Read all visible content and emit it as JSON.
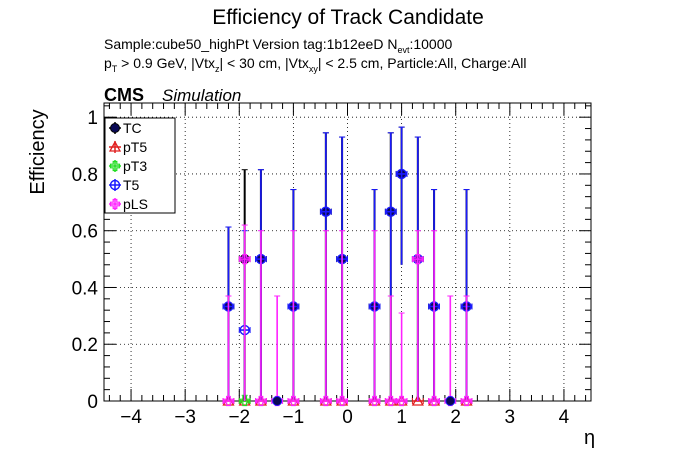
{
  "chart_data": {
    "type": "scatter",
    "title": "Efficiency of Track Candidate",
    "subtitle_sample": "Sample:cube50_highPt   Version tag:1b12eeD  N",
    "subtitle_sample_sub": "evt",
    "subtitle_sample_tail": ":10000",
    "cuts_line": {
      "p": "p",
      "p_sub": "T",
      "a": " > 0.9 GeV, |Vtx",
      "a_sub": "z",
      "b": "| < 30 cm, |Vtx",
      "b_sub": "xy",
      "c": "| < 2.5 cm, Particle:All, Charge:All"
    },
    "cms_label": "CMS",
    "simulation_label": "Simulation",
    "xlabel": "η",
    "ylabel": "Efficiency",
    "xlim": [
      -4.5,
      4.5
    ],
    "ylim": [
      0,
      1.05
    ],
    "x_ticks": [
      -4,
      -3,
      -2,
      -1,
      0,
      1,
      2,
      3,
      4
    ],
    "x_tick_labels": [
      "−4",
      "−3",
      "−2",
      "−1",
      "0",
      "1",
      "2",
      "3",
      "4"
    ],
    "y_ticks": [
      0,
      0.2,
      0.4,
      0.6,
      0.8,
      1
    ],
    "y_tick_labels": [
      "0",
      "0.2",
      "0.4",
      "0.6",
      "0.8",
      "1"
    ],
    "grid": true,
    "legend_position": "top-left",
    "bin_half_width": 0.1,
    "series": [
      {
        "name": "TC",
        "color": "#000000",
        "marker": "filled-circle",
        "points": [
          {
            "x": -2.2,
            "y": 0.333,
            "lo": 0.0,
            "hi": 0.613
          },
          {
            "x": -1.9,
            "y": 0.5,
            "lo": 0.0,
            "hi": 0.815
          },
          {
            "x": -1.6,
            "y": 0.5,
            "lo": 0.0,
            "hi": 0.815
          },
          {
            "x": -1.0,
            "y": 0.333,
            "lo": 0.0,
            "hi": 0.745
          },
          {
            "x": -0.4,
            "y": 0.667,
            "lo": 0.0,
            "hi": 0.945
          },
          {
            "x": -0.1,
            "y": 0.5,
            "lo": 0.0,
            "hi": 0.93
          },
          {
            "x": 0.5,
            "y": 0.333,
            "lo": 0.0,
            "hi": 0.745
          },
          {
            "x": 0.8,
            "y": 0.667,
            "lo": 0.0,
            "hi": 0.945
          },
          {
            "x": 1.0,
            "y": 0.8,
            "lo": 0.48,
            "hi": 0.965
          },
          {
            "x": 1.3,
            "y": 0.5,
            "lo": 0.0,
            "hi": 0.93
          },
          {
            "x": 1.6,
            "y": 0.333,
            "lo": 0.0,
            "hi": 0.745
          },
          {
            "x": 2.2,
            "y": 0.333,
            "lo": 0.0,
            "hi": 0.745
          }
        ]
      },
      {
        "name": "pT5",
        "color": "#e02020",
        "marker": "open-triangle",
        "points": [
          {
            "x": -2.2,
            "y": 0
          },
          {
            "x": -1.9,
            "y": 0
          },
          {
            "x": -1.6,
            "y": 0
          },
          {
            "x": -1.0,
            "y": 0
          },
          {
            "x": -0.4,
            "y": 0
          },
          {
            "x": -0.1,
            "y": 0
          },
          {
            "x": 0.5,
            "y": 0
          },
          {
            "x": 0.8,
            "y": 0
          },
          {
            "x": 1.0,
            "y": 0
          },
          {
            "x": 1.3,
            "y": 0
          },
          {
            "x": 1.6,
            "y": 0
          },
          {
            "x": 2.2,
            "y": 0
          }
        ]
      },
      {
        "name": "pT3",
        "color": "#22dd22",
        "marker": "open-cross",
        "points": [
          {
            "x": -1.9,
            "y": 0.0,
            "hi": 0.02
          }
        ]
      },
      {
        "name": "T5",
        "color": "#1a1aff",
        "marker": "open-circle",
        "points": [
          {
            "x": -2.2,
            "y": 0.333,
            "lo": 0.0,
            "hi": 0.613
          },
          {
            "x": -1.9,
            "y": 0.25,
            "lo": 0.0,
            "hi": 0.6
          },
          {
            "x": -1.6,
            "y": 0.5,
            "lo": 0.0,
            "hi": 0.815
          },
          {
            "x": -1.0,
            "y": 0.333,
            "lo": 0.0,
            "hi": 0.745
          },
          {
            "x": -0.4,
            "y": 0.667,
            "lo": 0.0,
            "hi": 0.945
          },
          {
            "x": -0.1,
            "y": 0.5,
            "lo": 0.0,
            "hi": 0.93
          },
          {
            "x": 0.5,
            "y": 0.333,
            "lo": 0.0,
            "hi": 0.745
          },
          {
            "x": 0.8,
            "y": 0.667,
            "lo": 0.0,
            "hi": 0.945
          },
          {
            "x": 1.0,
            "y": 0.8,
            "lo": 0.48,
            "hi": 0.965
          },
          {
            "x": 1.3,
            "y": 0.5,
            "lo": 0.0,
            "hi": 0.93
          },
          {
            "x": 1.6,
            "y": 0.333,
            "lo": 0.0,
            "hi": 0.745
          },
          {
            "x": 2.2,
            "y": 0.333,
            "lo": 0.0,
            "hi": 0.745
          }
        ]
      },
      {
        "name": "pLS",
        "color": "#ff22ff",
        "marker": "open-cross",
        "points": [
          {
            "x": -2.2,
            "y": 0,
            "hi": 0.37
          },
          {
            "x": -1.9,
            "y": 0.5,
            "lo": 0.0,
            "hi": 0.62
          },
          {
            "x": -1.6,
            "y": 0,
            "hi": 0.6
          },
          {
            "x": -1.3,
            "y": 0,
            "hi": 0.37
          },
          {
            "x": -1.0,
            "y": 0,
            "hi": 0.6
          },
          {
            "x": -0.4,
            "y": 0,
            "hi": 0.6
          },
          {
            "x": -0.1,
            "y": 0,
            "hi": 0.6
          },
          {
            "x": 0.5,
            "y": 0,
            "hi": 0.6
          },
          {
            "x": 0.8,
            "y": 0,
            "hi": 0.37
          },
          {
            "x": 1.0,
            "y": 0,
            "hi": 0.31
          },
          {
            "x": 1.3,
            "y": 0.5,
            "lo": 0.0,
            "hi": 0.6
          },
          {
            "x": 1.6,
            "y": 0,
            "hi": 0.6
          },
          {
            "x": 1.9,
            "y": 0,
            "hi": 0.37
          },
          {
            "x": 2.2,
            "y": 0,
            "hi": 0.37
          }
        ]
      }
    ],
    "zero_points": [
      {
        "x": -1.3,
        "color": "#1a1aff"
      },
      {
        "x": 1.9,
        "color": "#1a1aff"
      }
    ]
  }
}
